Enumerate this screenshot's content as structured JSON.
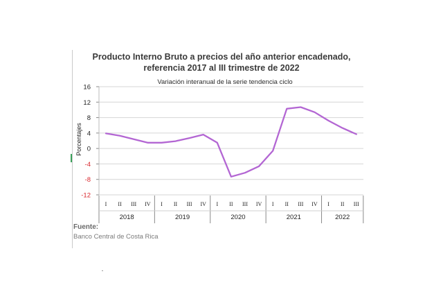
{
  "title_line1": "Producto Interno Bruto a precios del año anterior encadenado,",
  "title_line2": "referencia 2017 al III trimestre de 2022",
  "source": {
    "label": "Fuente:",
    "text": "Banco Central de Costa Rica"
  },
  "colors": {
    "line": "#b366d3",
    "grid": "#d6d6d6",
    "axis": "#888888",
    "negative_tick": "#d9262c"
  },
  "chart_data": {
    "type": "line",
    "title": "Producto Interno Bruto a precios del año anterior encadenado, referencia 2017 al III trimestre de 2022",
    "subtitle": "Variación interanual de la serie tendencia ciclo",
    "ylabel": "Porcentajes",
    "xlabel": "",
    "ylim": [
      -12,
      16
    ],
    "yticks": [
      16,
      12,
      8,
      4,
      0,
      -4,
      -8,
      -12
    ],
    "grid": true,
    "years": [
      {
        "label": "2018",
        "quarters": [
          "I",
          "II",
          "III",
          "IV"
        ]
      },
      {
        "label": "2019",
        "quarters": [
          "I",
          "II",
          "III",
          "IV"
        ]
      },
      {
        "label": "2020",
        "quarters": [
          "I",
          "II",
          "III",
          "IV"
        ]
      },
      {
        "label": "2021",
        "quarters": [
          "I",
          "II",
          "III",
          "IV"
        ]
      },
      {
        "label": "2022",
        "quarters": [
          "I",
          "II",
          "III"
        ]
      }
    ],
    "series": [
      {
        "values": [
          3.9,
          3.3,
          2.4,
          1.5,
          1.5,
          1.9,
          2.7,
          3.6,
          1.5,
          -7.3,
          -6.3,
          -4.6,
          -0.6,
          10.3,
          10.7,
          9.4,
          7.2,
          5.3,
          3.7
        ]
      }
    ]
  }
}
